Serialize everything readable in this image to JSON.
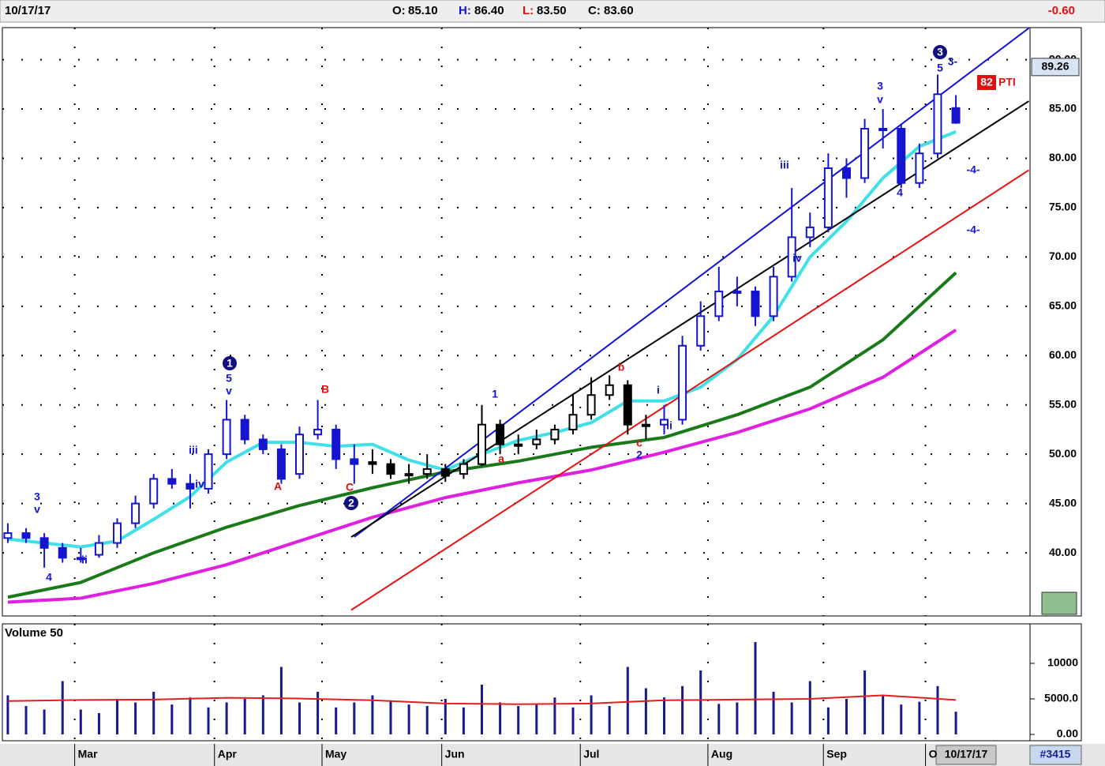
{
  "header": {
    "date": "10/17/17",
    "open_label": "O:",
    "open": "85.10",
    "high_label": "H:",
    "high": "86.40",
    "low_label": "L:",
    "low": "83.50",
    "close_label": "C:",
    "close": "83.60",
    "change": "-0.60"
  },
  "footer": {
    "date": "10/17/17",
    "symbol": "#3415"
  },
  "chart_data": [
    {
      "type": "candlestick",
      "xlim": [
        -0.9,
        168.2
      ],
      "xticks": [
        {
          "value": 11,
          "label": "Mar"
        },
        {
          "value": 34,
          "label": "Apr"
        },
        {
          "value": 51.7,
          "label": "May"
        },
        {
          "value": 71.4,
          "label": "Jun"
        },
        {
          "value": 94.2,
          "label": "Jul"
        },
        {
          "value": 115.2,
          "label": "Aug"
        },
        {
          "value": 134.2,
          "label": "Sep"
        },
        {
          "value": 151,
          "label": "O"
        }
      ],
      "ylim": [
        33.6,
        93.25
      ],
      "yticks": [
        {
          "value": 40,
          "label": "40.00"
        },
        {
          "value": 45,
          "label": "45.00"
        },
        {
          "value": 50,
          "label": "50.00"
        },
        {
          "value": 55,
          "label": "55.00"
        },
        {
          "value": 60,
          "label": "60.00"
        },
        {
          "value": 65,
          "label": "65.00"
        },
        {
          "value": 70,
          "label": "70.00"
        },
        {
          "value": 75,
          "label": "75.00"
        },
        {
          "value": 80,
          "label": "80.00"
        },
        {
          "value": 85,
          "label": "85.00"
        },
        {
          "value": 90,
          "label": "90.00"
        }
      ],
      "grid": true,
      "last_price": 89.26,
      "x": [
        0,
        3,
        6,
        9,
        12,
        15,
        18,
        21,
        24,
        27,
        30,
        33,
        36,
        39,
        42,
        45,
        48,
        51,
        54,
        57,
        60,
        63,
        66,
        69,
        72,
        75,
        78,
        81,
        84,
        87,
        90,
        93,
        96,
        99,
        102,
        105,
        108,
        111,
        114,
        117,
        120,
        123,
        126,
        129,
        132,
        135,
        138,
        141,
        144,
        147,
        150,
        153,
        156
      ],
      "open": [
        41.5,
        42,
        41.5,
        40.5,
        39.5,
        39.8,
        41,
        43,
        45,
        47.5,
        47,
        46.5,
        50,
        53.5,
        51.5,
        50.5,
        48,
        52,
        52.5,
        49.5,
        49.2,
        49,
        48,
        48,
        48.5,
        48,
        49,
        53,
        51,
        51,
        51.5,
        52.5,
        54,
        56,
        57,
        53,
        53,
        53.5,
        61,
        64,
        66.5,
        66.5,
        64,
        68,
        72,
        73,
        79,
        78,
        83,
        83,
        77.5,
        80.5,
        85.1
      ],
      "high": [
        43,
        42.5,
        42,
        41,
        40.5,
        41.8,
        43.5,
        45.8,
        48,
        48.5,
        48,
        50.5,
        55.5,
        54,
        52,
        51,
        52.8,
        55.5,
        53,
        51,
        50.5,
        49.5,
        49,
        50,
        49,
        49.5,
        55,
        53.5,
        52,
        52.5,
        53,
        56,
        57.8,
        58,
        57.5,
        54,
        55,
        62,
        65.5,
        69,
        68,
        67,
        69,
        77,
        74.5,
        80.5,
        80,
        84,
        85,
        83.5,
        81.5,
        88.5,
        86.4
      ],
      "low": [
        41,
        41,
        38.5,
        39,
        39,
        39.5,
        40.5,
        42.5,
        44.5,
        46.5,
        44.5,
        46,
        49.5,
        51,
        50,
        47,
        47.5,
        51.5,
        48.5,
        47,
        48,
        47.5,
        47,
        47.5,
        47.2,
        47.5,
        48.8,
        50,
        50,
        50.5,
        51,
        52,
        53.5,
        55.5,
        52,
        51.5,
        52,
        53,
        60.5,
        63.5,
        65,
        63,
        63.5,
        67.5,
        71,
        72.5,
        76,
        77.5,
        81,
        77,
        77,
        80,
        83.5
      ],
      "close": [
        42,
        41.5,
        40.5,
        39.5,
        39.5,
        41,
        43,
        45,
        47.5,
        47,
        46.5,
        50,
        53.5,
        51.5,
        50.5,
        47.5,
        52,
        52.5,
        49.5,
        49,
        49,
        48,
        48,
        48.5,
        47.8,
        49,
        53,
        51,
        51,
        51.5,
        52.5,
        54,
        56,
        57,
        53,
        53,
        53.5,
        61,
        64,
        66.5,
        66.5,
        64,
        68,
        72,
        73,
        79,
        78,
        83,
        83,
        77.5,
        80.5,
        86.5,
        83.6
      ],
      "candle_colors": [
        "#1515d0",
        "#1515d0",
        "#1515d0",
        "#1515d0",
        "#1515d0",
        "#1515d0",
        "#1515d0",
        "#1515d0",
        "#1515d0",
        "#1515d0",
        "#1515d0",
        "#1515d0",
        "#1515d0",
        "#1515d0",
        "#1515d0",
        "#1515d0",
        "#1515d0",
        "#1515d0",
        "#1515d0",
        "#1515d0",
        "#000000",
        "#000000",
        "#000000",
        "#000000",
        "#000000",
        "#000000",
        "#000000",
        "#000000",
        "#000000",
        "#000000",
        "#000000",
        "#000000",
        "#000000",
        "#000000",
        "#000000",
        "#000000",
        "#1515d0",
        "#1515d0",
        "#1515d0",
        "#1515d0",
        "#1515d0",
        "#1515d0",
        "#1515d0",
        "#1515d0",
        "#1515d0",
        "#1515d0",
        "#1515d0",
        "#1515d0",
        "#1515d0",
        "#1515d0",
        "#1515d0",
        "#1515d0",
        "#1515d0"
      ],
      "series": [
        {
          "color": "#e020e0",
          "line_width": 4,
          "x": [
            0,
            12,
            24,
            36,
            48,
            60,
            72,
            84,
            96,
            108,
            120,
            132,
            144,
            156
          ],
          "values": [
            35.0,
            35.4,
            36.9,
            38.8,
            41.2,
            43.6,
            45.6,
            47.1,
            48.4,
            50.2,
            52.2,
            54.6,
            57.8,
            62.6
          ]
        },
        {
          "color": "#1a7a1a",
          "line_width": 4,
          "x": [
            0,
            12,
            24,
            36,
            48,
            60,
            72,
            84,
            96,
            108,
            120,
            132,
            144,
            156
          ],
          "values": [
            35.5,
            37.0,
            40.0,
            42.6,
            44.8,
            46.6,
            48.2,
            49.3,
            50.7,
            51.7,
            54.0,
            56.8,
            61.6,
            68.4
          ]
        },
        {
          "color": "#40e0e8",
          "line_width": 4,
          "x": [
            0,
            12,
            18,
            24,
            30,
            36,
            42,
            48,
            54,
            60,
            66,
            72,
            78,
            84,
            90,
            96,
            102,
            108,
            114,
            120,
            126,
            132,
            138,
            144,
            150,
            156
          ],
          "values": [
            41.4,
            40.6,
            41.2,
            43.4,
            45.7,
            49.2,
            51.2,
            51.2,
            50.8,
            51.0,
            49.4,
            48.4,
            50.0,
            51.4,
            52.2,
            53.2,
            55.4,
            55.4,
            56.8,
            59.6,
            64.0,
            70.0,
            73.6,
            78.0,
            81.2,
            82.7
          ]
        },
        {
          "color": "#1010e0",
          "line_width": 2,
          "x": [
            57,
            168
          ],
          "values": [
            41.6,
            93.2
          ]
        },
        {
          "color": "#000000",
          "line_width": 2,
          "x": [
            56.5,
            168
          ],
          "values": [
            41.6,
            85.8
          ]
        },
        {
          "color": "#e81010",
          "line_width": 2,
          "x": [
            56.5,
            168
          ],
          "values": [
            34.2,
            78.8
          ]
        }
      ],
      "wave_labels": [
        "3",
        "v",
        "4",
        "ii",
        "iii",
        "iv",
        "5",
        "v",
        "B",
        "A",
        "C",
        "1",
        "a",
        "b",
        "c",
        "2",
        "i",
        "ii",
        "iii",
        "iv",
        "3",
        "v",
        "4",
        "5",
        "3-",
        "-4-",
        "-4-"
      ],
      "circled_labels": [
        "1",
        "2",
        "3"
      ],
      "pti_score": "82",
      "pti_label": "PTI"
    },
    {
      "type": "bar",
      "title": "Volume 50",
      "color": "#1a1a8c",
      "xlim": [
        -0.9,
        168.2
      ],
      "ylim": [
        0,
        15556
      ],
      "yticks": [
        {
          "value": 0,
          "label": "0.00"
        },
        {
          "value": 5000,
          "label": "5000.0"
        },
        {
          "value": 10000,
          "label": "10000"
        }
      ],
      "x": [
        0,
        3,
        6,
        9,
        12,
        15,
        18,
        21,
        24,
        27,
        30,
        33,
        36,
        39,
        42,
        45,
        48,
        51,
        54,
        57,
        60,
        63,
        66,
        69,
        72,
        75,
        78,
        81,
        84,
        87,
        90,
        93,
        96,
        99,
        102,
        105,
        108,
        111,
        114,
        117,
        120,
        123,
        126,
        129,
        132,
        135,
        138,
        141,
        144,
        147,
        150,
        153,
        156
      ],
      "values": [
        5500,
        4000,
        3500,
        7500,
        3500,
        3000,
        5000,
        4500,
        6000,
        4200,
        5200,
        3800,
        4500,
        5000,
        5500,
        9500,
        4500,
        6000,
        3800,
        4500,
        5500,
        4800,
        4200,
        4000,
        5000,
        3800,
        7000,
        4500,
        4000,
        4200,
        5200,
        3800,
        5500,
        4000,
        9500,
        6500,
        5200,
        6800,
        9000,
        4300,
        4500,
        13000,
        6000,
        4500,
        7500,
        3800,
        5000,
        9000,
        5500,
        4200,
        4600,
        6800,
        3200
      ],
      "series": [
        {
          "color": "#e02020",
          "x": [
            0,
            12,
            24,
            36,
            48,
            60,
            72,
            84,
            96,
            108,
            120,
            132,
            144,
            156
          ],
          "values": [
            4700,
            4850,
            4900,
            5150,
            5050,
            4800,
            4350,
            4250,
            4350,
            4800,
            4900,
            5000,
            5500,
            4850
          ]
        }
      ]
    }
  ]
}
